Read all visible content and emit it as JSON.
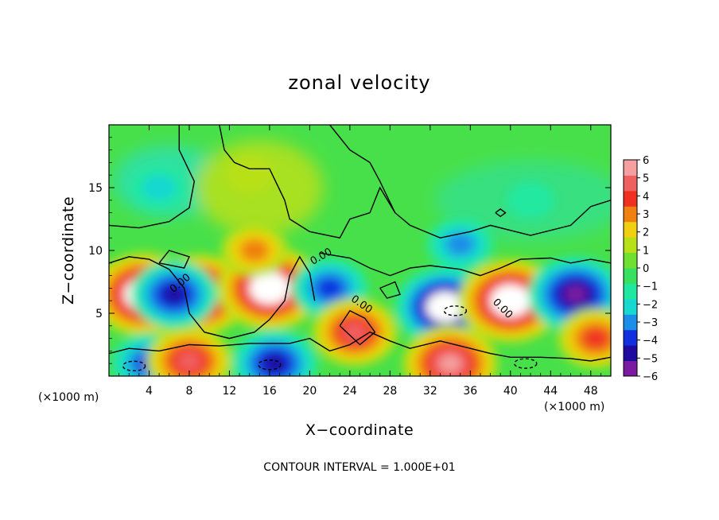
{
  "chart_data": {
    "type": "heatmap",
    "title": "zonal velocity",
    "xlabel": "X−coordinate",
    "ylabel": "Z−coordinate",
    "x_units_left": "(×1000 m)",
    "x_units_right": "(×1000 m)",
    "xlim": [
      0,
      50
    ],
    "ylim": [
      0,
      20
    ],
    "x_ticks": [
      4,
      8,
      12,
      16,
      20,
      24,
      28,
      32,
      36,
      40,
      44,
      48
    ],
    "y_ticks": [
      5,
      10,
      15
    ],
    "colorbar": {
      "ticks": [
        "6",
        "5",
        "4",
        "3",
        "2",
        "1",
        "0",
        "−1",
        "−2",
        "−3",
        "−4",
        "−5",
        "−6"
      ],
      "min": -6,
      "max": 6,
      "colors": [
        "#7a1aa0",
        "#1f0aa0",
        "#1030e0",
        "#1a8ee8",
        "#18d8d0",
        "#20e8a0",
        "#38e060",
        "#70e030",
        "#b8e018",
        "#f0d010",
        "#f08010",
        "#f03020",
        "#f06060",
        "#f4a0a0"
      ]
    },
    "contour_labels": [
      "0.00",
      "0.00",
      "0.00",
      "0.00"
    ],
    "regions": [
      {
        "x": 3.5,
        "z": 6.5,
        "value": 7,
        "kind": "strong positive (white core)"
      },
      {
        "x": 9.0,
        "z": 6.5,
        "value": 6.5,
        "kind": "positive (white core)"
      },
      {
        "x": 6.5,
        "z": 6.5,
        "value": -5,
        "kind": "negative"
      },
      {
        "x": 16.0,
        "z": 7.0,
        "value": 7,
        "kind": "strong positive (white core)"
      },
      {
        "x": 14.5,
        "z": 10.0,
        "value": 3,
        "kind": "positive"
      },
      {
        "x": 14.0,
        "z": 16.0,
        "value": 1,
        "kind": "weak positive"
      },
      {
        "x": 4.0,
        "z": 1.0,
        "value": -4,
        "kind": "negative"
      },
      {
        "x": 16.5,
        "z": 1.0,
        "value": -5,
        "kind": "negative"
      },
      {
        "x": 8.0,
        "z": 1.2,
        "value": 5,
        "kind": "positive"
      },
      {
        "x": 22.0,
        "z": 7.0,
        "value": -4,
        "kind": "negative"
      },
      {
        "x": 24.5,
        "z": 3.5,
        "value": 5,
        "kind": "positive"
      },
      {
        "x": 33.5,
        "z": 5.5,
        "value": -6.5,
        "kind": "strong negative (white core)"
      },
      {
        "x": 34.0,
        "z": 1.0,
        "value": 6,
        "kind": "positive (white core)"
      },
      {
        "x": 40.0,
        "z": 6.0,
        "value": 7,
        "kind": "strong positive (white core)"
      },
      {
        "x": 46.5,
        "z": 6.5,
        "value": -6,
        "kind": "strong negative"
      },
      {
        "x": 48.5,
        "z": 3.0,
        "value": 4,
        "kind": "positive"
      },
      {
        "x": 35.0,
        "z": 10.5,
        "value": -3,
        "kind": "negative"
      },
      {
        "x": 5.0,
        "z": 15.0,
        "value": -2,
        "kind": "weak negative"
      },
      {
        "x": 42.0,
        "z": 14.0,
        "value": -1,
        "kind": "weak negative"
      }
    ]
  },
  "footer": {
    "contour_interval": "CONTOUR INTERVAL = 1.000E+01"
  }
}
